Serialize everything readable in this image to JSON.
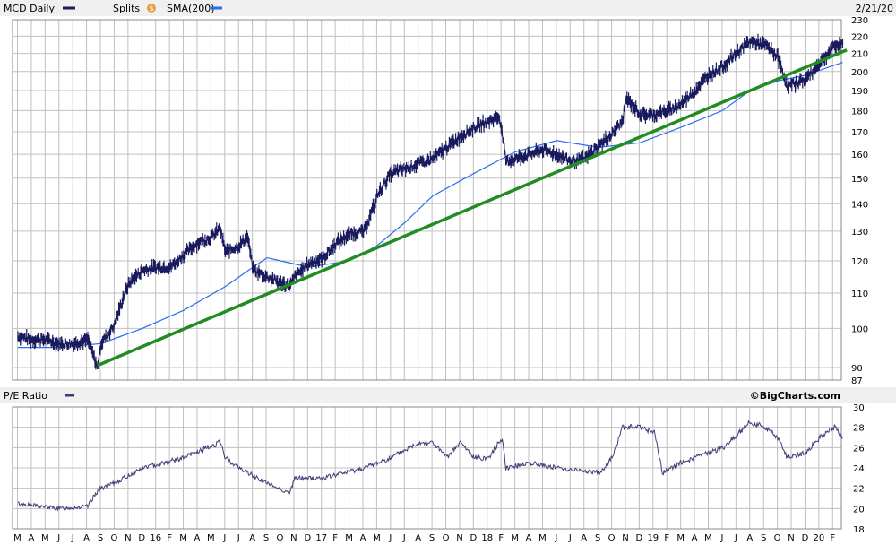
{
  "header": {
    "symbol_label": "MCD Daily",
    "splits_label": "Splits",
    "splits_icon_glyph": "$",
    "sma_label": "SMA(200)",
    "date_label": "2/21/20"
  },
  "pe_panel": {
    "label": "P/E Ratio",
    "brand": "©BigCharts.com"
  },
  "colors": {
    "price": "#1a1a5e",
    "sma": "#2a6cf0",
    "trendline": "#228b22",
    "pe": "#3d3d78",
    "grid": "#c0c0c0",
    "splits_icon": "#e3a33c",
    "panel_header_bg": "#f0f0f0"
  },
  "chart_data": [
    {
      "type": "line",
      "name": "price-panel",
      "y_scale": "log",
      "ylim": [
        87,
        230
      ],
      "ytick_labels": [
        "230",
        "220",
        "210",
        "200",
        "190",
        "180",
        "170",
        "160",
        "150",
        "140",
        "130",
        "120",
        "110",
        "100",
        "90",
        "87"
      ],
      "month_labels": [
        "M",
        "A",
        "M",
        "J",
        "J",
        "A",
        "S",
        "O",
        "N",
        "D",
        "16",
        "F",
        "M",
        "A",
        "M",
        "J",
        "J",
        "A",
        "S",
        "O",
        "N",
        "D",
        "17",
        "F",
        "M",
        "A",
        "M",
        "J",
        "J",
        "A",
        "S",
        "O",
        "N",
        "D",
        "18",
        "F",
        "M",
        "A",
        "M",
        "J",
        "J",
        "A",
        "S",
        "O",
        "N",
        "D",
        "19",
        "F",
        "M",
        "A",
        "M",
        "J",
        "J",
        "A",
        "S",
        "O",
        "N",
        "D",
        "20",
        "F"
      ],
      "x_start": "2015-03-01",
      "series": [
        {
          "name": "MCD Daily",
          "style": "ohlc-bars",
          "points": [
            [
              "2015-03-02",
              98
            ],
            [
              "2015-04-01",
              97
            ],
            [
              "2015-05-01",
              97
            ],
            [
              "2015-06-01",
              96
            ],
            [
              "2015-07-01",
              96
            ],
            [
              "2015-08-03",
              97
            ],
            [
              "2015-08-24",
              90
            ],
            [
              "2015-09-01",
              96
            ],
            [
              "2015-10-01",
              101
            ],
            [
              "2015-10-23",
              110
            ],
            [
              "2015-11-02",
              113
            ],
            [
              "2015-12-01",
              117
            ],
            [
              "2016-01-04",
              118
            ],
            [
              "2016-02-01",
              118
            ],
            [
              "2016-03-01",
              122
            ],
            [
              "2016-04-01",
              126
            ],
            [
              "2016-05-02",
              128
            ],
            [
              "2016-05-20",
              131
            ],
            [
              "2016-06-01",
              123
            ],
            [
              "2016-07-01",
              125
            ],
            [
              "2016-07-20",
              128
            ],
            [
              "2016-08-01",
              117
            ],
            [
              "2016-09-01",
              115
            ],
            [
              "2016-10-03",
              113
            ],
            [
              "2016-10-21",
              112
            ],
            [
              "2016-11-01",
              115
            ],
            [
              "2016-12-01",
              119
            ],
            [
              "2017-01-03",
              121
            ],
            [
              "2017-02-01",
              126
            ],
            [
              "2017-03-01",
              129
            ],
            [
              "2017-04-03",
              130
            ],
            [
              "2017-04-26",
              140
            ],
            [
              "2017-05-01",
              143
            ],
            [
              "2017-06-01",
              152
            ],
            [
              "2017-07-03",
              154
            ],
            [
              "2017-08-01",
              156
            ],
            [
              "2017-09-01",
              158
            ],
            [
              "2017-10-02",
              163
            ],
            [
              "2017-11-01",
              168
            ],
            [
              "2017-12-01",
              172
            ],
            [
              "2018-01-02",
              175
            ],
            [
              "2018-01-26",
              177
            ],
            [
              "2018-02-09",
              157
            ],
            [
              "2018-03-01",
              158
            ],
            [
              "2018-04-02",
              160
            ],
            [
              "2018-05-01",
              162
            ],
            [
              "2018-06-01",
              160
            ],
            [
              "2018-07-02",
              157
            ],
            [
              "2018-08-01",
              158
            ],
            [
              "2018-09-04",
              164
            ],
            [
              "2018-10-01",
              169
            ],
            [
              "2018-10-24",
              175
            ],
            [
              "2018-11-01",
              186
            ],
            [
              "2018-12-03",
              178
            ],
            [
              "2019-01-02",
              178
            ],
            [
              "2019-02-01",
              180
            ],
            [
              "2019-03-01",
              183
            ],
            [
              "2019-04-01",
              190
            ],
            [
              "2019-05-01",
              198
            ],
            [
              "2019-06-03",
              203
            ],
            [
              "2019-07-01",
              210
            ],
            [
              "2019-08-01",
              217
            ],
            [
              "2019-09-03",
              215
            ],
            [
              "2019-10-01",
              208
            ],
            [
              "2019-10-22",
              192
            ],
            [
              "2019-11-01",
              193
            ],
            [
              "2019-12-02",
              196
            ],
            [
              "2020-01-02",
              205
            ],
            [
              "2020-02-03",
              214
            ],
            [
              "2020-02-21",
              216
            ]
          ]
        },
        {
          "name": "SMA(200)",
          "style": "line",
          "points": [
            [
              "2015-03-02",
              95
            ],
            [
              "2015-06-01",
              95
            ],
            [
              "2015-09-01",
              96
            ],
            [
              "2015-12-01",
              100
            ],
            [
              "2016-03-01",
              105
            ],
            [
              "2016-06-01",
              112
            ],
            [
              "2016-08-01",
              118
            ],
            [
              "2016-09-01",
              121
            ],
            [
              "2016-10-01",
              120
            ],
            [
              "2016-12-01",
              118
            ],
            [
              "2017-03-01",
              120
            ],
            [
              "2017-05-01",
              125
            ],
            [
              "2017-07-01",
              133
            ],
            [
              "2017-09-01",
              143
            ],
            [
              "2017-12-01",
              152
            ],
            [
              "2018-03-01",
              161
            ],
            [
              "2018-06-01",
              166
            ],
            [
              "2018-09-01",
              163
            ],
            [
              "2018-12-01",
              165
            ],
            [
              "2019-03-01",
              172
            ],
            [
              "2019-06-01",
              180
            ],
            [
              "2019-08-01",
              190
            ],
            [
              "2019-10-01",
              195
            ],
            [
              "2019-12-01",
              198
            ],
            [
              "2020-02-21",
              205
            ]
          ]
        },
        {
          "name": "trendline",
          "style": "line",
          "points": [
            [
              "2015-08-24",
              90.5
            ],
            [
              "2020-03-01",
              212
            ]
          ]
        }
      ]
    },
    {
      "type": "line",
      "name": "P/E Ratio",
      "ylim": [
        18,
        30
      ],
      "ytick_labels": [
        "30",
        "28",
        "26",
        "24",
        "22",
        "20",
        "18"
      ],
      "series": [
        {
          "name": "P/E Ratio",
          "points": [
            [
              "2015-03-02",
              20.5
            ],
            [
              "2015-06-01",
              20
            ],
            [
              "2015-08-03",
              20.2
            ],
            [
              "2015-08-20",
              21.5
            ],
            [
              "2015-09-01",
              22
            ],
            [
              "2015-10-01",
              22.5
            ],
            [
              "2015-12-01",
              24
            ],
            [
              "2016-03-01",
              25
            ],
            [
              "2016-05-20",
              26.5
            ],
            [
              "2016-06-01",
              25
            ],
            [
              "2016-07-01",
              24
            ],
            [
              "2016-09-01",
              22.5
            ],
            [
              "2016-10-21",
              21.5
            ],
            [
              "2016-11-01",
              23
            ],
            [
              "2017-01-03",
              23
            ],
            [
              "2017-04-03",
              24
            ],
            [
              "2017-06-01",
              25
            ],
            [
              "2017-08-01",
              26.5
            ],
            [
              "2017-09-01",
              26.5
            ],
            [
              "2017-10-02",
              25
            ],
            [
              "2017-11-01",
              26.5
            ],
            [
              "2017-12-01",
              25
            ],
            [
              "2018-01-02",
              25
            ],
            [
              "2018-02-01",
              27
            ],
            [
              "2018-02-09",
              24
            ],
            [
              "2018-04-02",
              24.5
            ],
            [
              "2018-06-01",
              24
            ],
            [
              "2018-09-04",
              23.5
            ],
            [
              "2018-10-01",
              25
            ],
            [
              "2018-10-24",
              28
            ],
            [
              "2018-12-03",
              28
            ],
            [
              "2019-01-02",
              27.5
            ],
            [
              "2019-01-20",
              23.5
            ],
            [
              "2019-03-01",
              24.5
            ],
            [
              "2019-06-03",
              26
            ],
            [
              "2019-08-01",
              28.5
            ],
            [
              "2019-09-03",
              28
            ],
            [
              "2019-10-01",
              27
            ],
            [
              "2019-10-22",
              25
            ],
            [
              "2019-12-02",
              25.5
            ],
            [
              "2020-01-02",
              27
            ],
            [
              "2020-02-03",
              28
            ],
            [
              "2020-02-21",
              27
            ]
          ]
        }
      ]
    }
  ]
}
